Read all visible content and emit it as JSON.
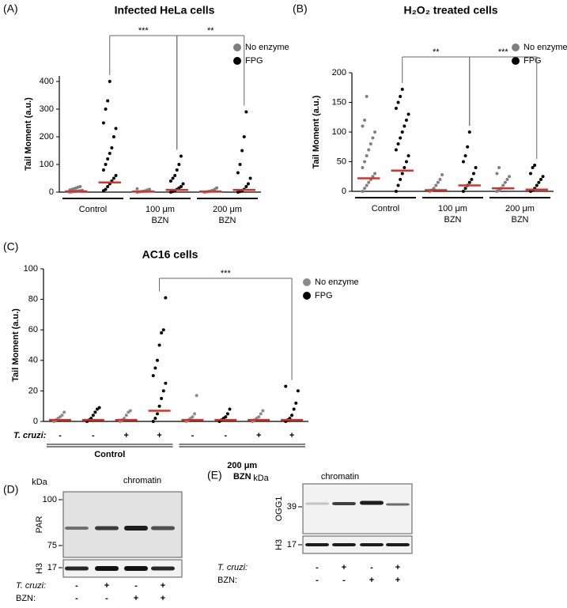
{
  "chart_data": [
    {
      "type": "strip",
      "panel": "(A)",
      "title": "Infected HeLa cells",
      "ylabel": "Tail Moment (a.u.)",
      "categories": [
        [
          "Control"
        ],
        [
          "100 μm",
          "BZN"
        ],
        [
          "200 μm",
          "BZN"
        ]
      ],
      "ylim": [
        0,
        420
      ],
      "yticks": [
        0,
        100,
        200,
        300,
        400
      ],
      "median_color": "#d9302b",
      "series": [
        {
          "name": "No enzyme",
          "color": "#7f7f7f",
          "values": [
            [
              0,
              1,
              2,
              3,
              4,
              5,
              6,
              8,
              10,
              12,
              15,
              18,
              20
            ],
            [
              0,
              1,
              2,
              3,
              5,
              8,
              10,
              12
            ],
            [
              0,
              1,
              2,
              4,
              6,
              10,
              15
            ]
          ],
          "medians": [
            3,
            2,
            2
          ]
        },
        {
          "name": "FPG",
          "color": "#000000",
          "values": [
            [
              5,
              10,
              20,
              30,
              40,
              50,
              60,
              80,
              100,
              120,
              140,
              160,
              200,
              230,
              250,
              300,
              330,
              400
            ],
            [
              0,
              2,
              5,
              10,
              15,
              20,
              30,
              40,
              50,
              60,
              80,
              100,
              130
            ],
            [
              0,
              2,
              5,
              10,
              20,
              30,
              50,
              70,
              100,
              150,
              200,
              290
            ]
          ],
          "medians": [
            35,
            8,
            8
          ]
        }
      ],
      "significance": [
        {
          "label": "***",
          "from": 0,
          "to": 1
        },
        {
          "label": "**",
          "from": 1,
          "to": 2
        }
      ]
    },
    {
      "type": "strip",
      "panel": "(B)",
      "title": "H₂O₂ treated cells",
      "ylabel": "Tail Moment (a.u.)",
      "categories": [
        [
          "Control"
        ],
        [
          "100 μm",
          "BZN"
        ],
        [
          "200 μm",
          "BZN"
        ]
      ],
      "ylim": [
        0,
        200
      ],
      "yticks": [
        0,
        50,
        100,
        150,
        200
      ],
      "median_color": "#d9302b",
      "series": [
        {
          "name": "No enzyme",
          "color": "#7f7f7f",
          "values": [
            [
              0,
              5,
              10,
              15,
              20,
              25,
              30,
              40,
              50,
              60,
              70,
              80,
              90,
              100,
              110,
              120,
              160
            ],
            [
              0,
              2,
              5,
              10,
              15,
              20,
              28
            ],
            [
              0,
              2,
              5,
              10,
              15,
              20,
              25,
              30,
              40
            ]
          ],
          "medians": [
            22,
            2,
            5
          ]
        },
        {
          "name": "FPG",
          "color": "#000000",
          "values": [
            [
              0,
              10,
              20,
              30,
              40,
              50,
              60,
              70,
              80,
              90,
              100,
              110,
              120,
              130,
              140,
              150,
              160,
              172
            ],
            [
              0,
              5,
              10,
              15,
              20,
              30,
              40,
              50,
              60,
              75,
              100
            ],
            [
              0,
              2,
              5,
              10,
              15,
              20,
              25,
              30,
              40,
              44
            ]
          ],
          "medians": [
            35,
            10,
            3
          ]
        }
      ],
      "significance": [
        {
          "label": "**",
          "from": 0,
          "to": 1
        },
        {
          "label": "***",
          "from": 1,
          "to": 2
        }
      ]
    },
    {
      "type": "strip",
      "panel": "(C)",
      "title": "AC16  cells",
      "ylabel": "Tail Moment (a.u.)",
      "row_label": "T. cruzi:",
      "categories": [
        "-",
        "+",
        "-",
        "+"
      ],
      "groups": [
        {
          "label": [
            "Control"
          ],
          "from": 0,
          "to": 1
        },
        {
          "label": [
            "200 μm",
            "BZN"
          ],
          "from": 2,
          "to": 3
        }
      ],
      "ylim": [
        0,
        100
      ],
      "yticks": [
        0,
        20,
        40,
        60,
        80,
        100
      ],
      "median_color": "#d9302b",
      "series": [
        {
          "name": "No enzyme",
          "color": "#8c8c8c",
          "values": [
            [
              0,
              1,
              2,
              3,
              4,
              6
            ],
            [
              0,
              1,
              2,
              4,
              6,
              7
            ],
            [
              0,
              1,
              2,
              3,
              5,
              17
            ],
            [
              0,
              1,
              2,
              3,
              5,
              7
            ]
          ],
          "medians": [
            1,
            1,
            1,
            1
          ]
        },
        {
          "name": "FPG",
          "color": "#000000",
          "values": [
            [
              0,
              1,
              2,
              4,
              6,
              8,
              9
            ],
            [
              0,
              2,
              5,
              10,
              15,
              20,
              25,
              30,
              35,
              40,
              50,
              58,
              60,
              81
            ],
            [
              0,
              1,
              2,
              3,
              5,
              8
            ],
            [
              0,
              1,
              2,
              4,
              8,
              12,
              20,
              23
            ]
          ],
          "medians": [
            1,
            7,
            1,
            1
          ]
        }
      ],
      "significance": [
        {
          "label": "***",
          "from": 1,
          "to": 3
        }
      ]
    }
  ],
  "blots": [
    {
      "panel": "(D)",
      "unit": "kDa",
      "header": "chromatin",
      "rows": [
        {
          "label": "PAR",
          "markers": [
            "100",
            "75"
          ]
        },
        {
          "label": "H3",
          "markers": [
            "17"
          ]
        }
      ],
      "conditions": [
        {
          "label": "T. cruzi:",
          "signs": [
            "-",
            "+",
            "-",
            "+"
          ]
        },
        {
          "label": "BZN:",
          "signs": [
            "-",
            "-",
            "+",
            "+"
          ]
        }
      ]
    },
    {
      "panel": "(E)",
      "unit": "kDa",
      "header": "chromatin",
      "rows": [
        {
          "label": "OGG1",
          "markers": [
            "39"
          ]
        },
        {
          "label": "H3",
          "markers": [
            "17"
          ]
        }
      ],
      "conditions": [
        {
          "label": "T. cruzi:",
          "signs": [
            "-",
            "+",
            "-",
            "+"
          ]
        },
        {
          "label": "BZN:",
          "signs": [
            "-",
            "-",
            "+",
            "+"
          ]
        }
      ]
    }
  ]
}
